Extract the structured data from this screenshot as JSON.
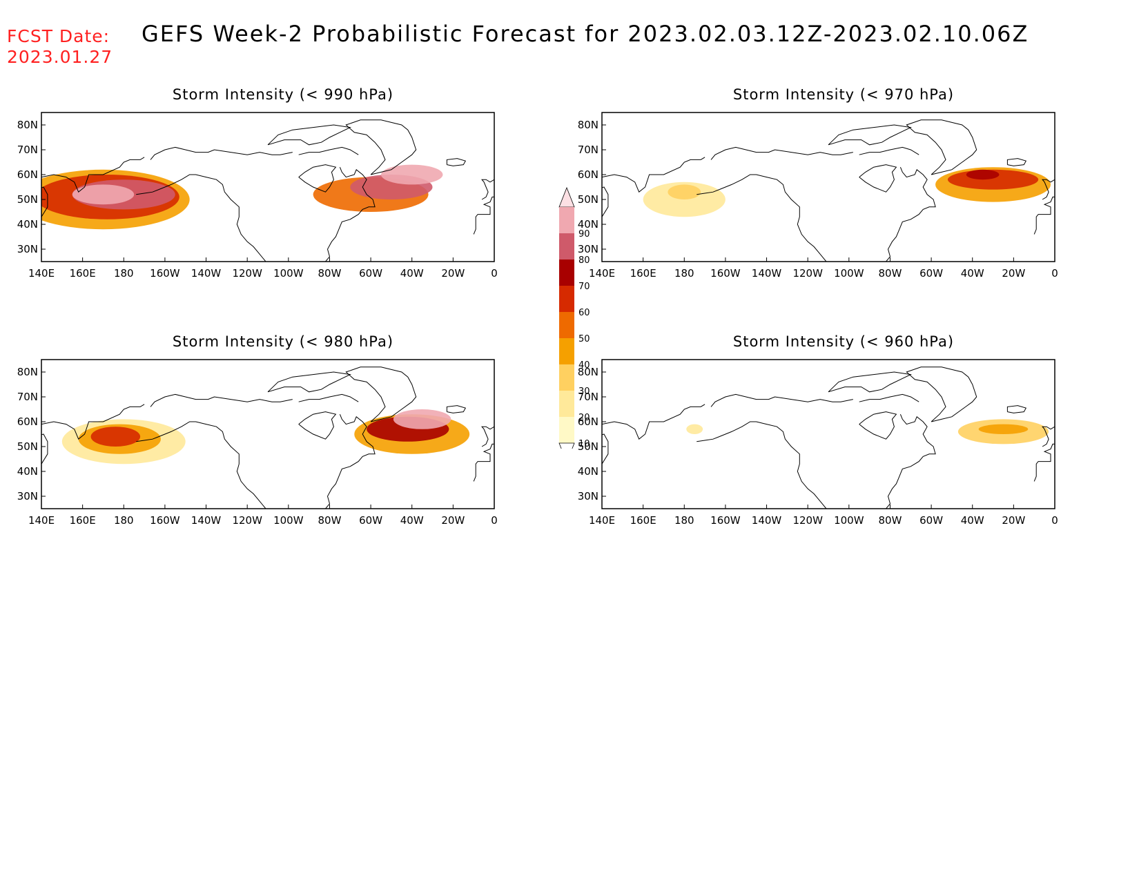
{
  "header": {
    "fcst_label": "FCST Date:",
    "fcst_date": "2023.01.27",
    "title": "GEFS Week-2 Probabilistic Forecast for 2023.02.03.12Z-2023.02.10.06Z"
  },
  "axes": {
    "lon_ticks": [
      "140E",
      "160E",
      "180",
      "160W",
      "140W",
      "120W",
      "100W",
      "80W",
      "60W",
      "40W",
      "20W",
      "0"
    ],
    "lat_ticks": [
      "80N",
      "70N",
      "60N",
      "50N",
      "40N",
      "30N"
    ]
  },
  "colorbar": {
    "levels": [
      "10",
      "20",
      "30",
      "40",
      "50",
      "60",
      "70",
      "80",
      "90"
    ],
    "colors": [
      "#fff9c6",
      "#ffe99a",
      "#ffd060",
      "#f5a000",
      "#ee6a00",
      "#d62a00",
      "#a80000",
      "#cf5a6a",
      "#f0a8b0",
      "#fde0e4"
    ]
  },
  "panels": [
    {
      "title": "Storm Intensity (< 990 hPa)",
      "blobs": [
        {
          "lon": 170,
          "lat": 50,
          "rlon": 42,
          "rlat": 12,
          "level": 3
        },
        {
          "lon": 172,
          "lat": 51,
          "rlon": 35,
          "rlat": 9,
          "level": 5
        },
        {
          "lon": 180,
          "lat": 52,
          "rlon": 25,
          "rlat": 6,
          "level": 7
        },
        {
          "lon": 170,
          "lat": 52,
          "rlon": 15,
          "rlat": 4,
          "level": 8
        },
        {
          "lon": 300,
          "lat": 52,
          "rlon": 28,
          "rlat": 7,
          "level": 4
        },
        {
          "lon": 310,
          "lat": 55,
          "rlon": 20,
          "rlat": 5,
          "level": 7
        },
        {
          "lon": 320,
          "lat": 60,
          "rlon": 15,
          "rlat": 4,
          "level": 8
        }
      ]
    },
    {
      "title": "Storm Intensity (< 970 hPa)",
      "blobs": [
        {
          "lon": 180,
          "lat": 50,
          "rlon": 20,
          "rlat": 7,
          "level": 1
        },
        {
          "lon": 180,
          "lat": 53,
          "rlon": 8,
          "rlat": 3,
          "level": 2
        },
        {
          "lon": 330,
          "lat": 56,
          "rlon": 28,
          "rlat": 7,
          "level": 3
        },
        {
          "lon": 330,
          "lat": 58,
          "rlon": 22,
          "rlat": 4,
          "level": 5
        },
        {
          "lon": 325,
          "lat": 60,
          "rlon": 8,
          "rlat": 2,
          "level": 6
        }
      ]
    },
    {
      "title": "Storm Intensity (< 980 hPa)",
      "blobs": [
        {
          "lon": 180,
          "lat": 52,
          "rlon": 30,
          "rlat": 9,
          "level": 1
        },
        {
          "lon": 178,
          "lat": 53,
          "rlon": 20,
          "rlat": 6,
          "level": 3
        },
        {
          "lon": 176,
          "lat": 54,
          "rlon": 12,
          "rlat": 4,
          "level": 5
        },
        {
          "lon": 320,
          "lat": 55,
          "rlon": 28,
          "rlat": 8,
          "level": 3
        },
        {
          "lon": 318,
          "lat": 57,
          "rlon": 20,
          "rlat": 5,
          "level": 6
        },
        {
          "lon": 325,
          "lat": 61,
          "rlon": 14,
          "rlat": 4,
          "level": 8
        }
      ]
    },
    {
      "title": "Storm Intensity (< 960 hPa)",
      "blobs": [
        {
          "lon": 185,
          "lat": 57,
          "rlon": 4,
          "rlat": 2,
          "level": 1
        },
        {
          "lon": 335,
          "lat": 56,
          "rlon": 22,
          "rlat": 5,
          "level": 2
        },
        {
          "lon": 335,
          "lat": 57,
          "rlon": 12,
          "rlat": 2,
          "level": 3
        }
      ]
    }
  ]
}
